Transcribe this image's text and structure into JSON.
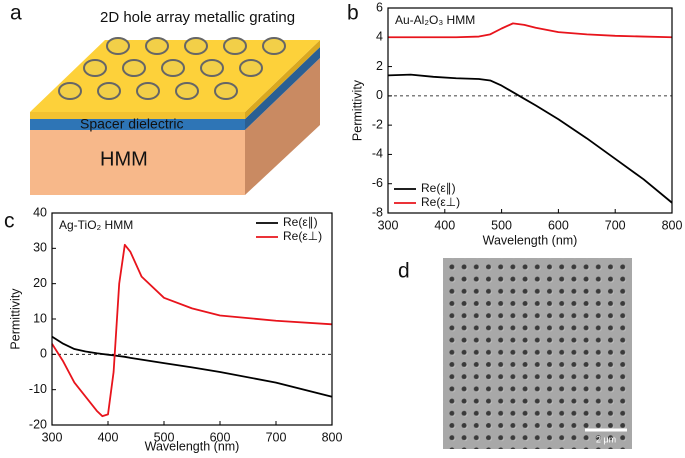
{
  "panel_labels": [
    "a",
    "b",
    "c",
    "d"
  ],
  "diagram": {
    "title": "2D hole array metallic grating",
    "spacer": "Spacer dielectric",
    "hmm": "HMM"
  },
  "sem": {
    "scale_bar": "2 μm"
  },
  "chart_data": [
    {
      "type": "line",
      "title": "Au-Al₂O₃ HMM",
      "x_label": "Wavelength (nm)",
      "y_label": "Permittivity",
      "x": [
        300,
        340,
        380,
        420,
        460,
        480,
        500,
        520,
        540,
        560,
        600,
        650,
        700,
        750,
        800
      ],
      "series": [
        {
          "name": "Re(ε∥)",
          "color": "#000000",
          "values": [
            1.4,
            1.45,
            1.3,
            1.2,
            1.15,
            1.05,
            0.7,
            0.25,
            -0.2,
            -0.65,
            -1.6,
            -2.9,
            -4.3,
            -5.7,
            -7.3
          ]
        },
        {
          "name": "Re(ε⊥)",
          "color": "#e8141c",
          "values": [
            4.0,
            4.0,
            4.0,
            4.0,
            4.05,
            4.2,
            4.6,
            4.95,
            4.85,
            4.65,
            4.35,
            4.2,
            4.1,
            4.05,
            4.0
          ]
        }
      ],
      "xlim": [
        300,
        800
      ],
      "xticks": [
        300,
        400,
        500,
        600,
        700,
        800
      ],
      "ylim": [
        -8,
        6
      ],
      "yticks": [
        -8,
        -6,
        -4,
        -2,
        0,
        2,
        4,
        6
      ],
      "hline": 0,
      "legend": "lower left"
    },
    {
      "type": "line",
      "title": "Ag-TiO₂ HMM",
      "x_label": "Wavelength (nm)",
      "y_label": "Permittivity",
      "x": [
        300,
        320,
        340,
        360,
        380,
        390,
        400,
        410,
        420,
        430,
        440,
        460,
        500,
        550,
        600,
        700,
        800
      ],
      "series": [
        {
          "name": "Re(ε∥)",
          "color": "#000000",
          "values": [
            5,
            3,
            1.5,
            0.8,
            0.3,
            0.1,
            -0.1,
            -0.3,
            -0.5,
            -0.7,
            -1,
            -1.5,
            -2.5,
            -3.7,
            -5,
            -8,
            -12
          ]
        },
        {
          "name": "Re(ε⊥)",
          "color": "#e8141c",
          "values": [
            3,
            -2,
            -8,
            -12,
            -16,
            -17.5,
            -17,
            -5,
            20,
            31,
            29,
            22,
            16,
            13,
            11,
            9.5,
            8.5
          ]
        }
      ],
      "xlim": [
        300,
        800
      ],
      "xticks": [
        300,
        400,
        500,
        600,
        700,
        800
      ],
      "ylim": [
        -20,
        40
      ],
      "yticks": [
        -20,
        -10,
        0,
        10,
        20,
        30,
        40
      ],
      "hline": 0,
      "legend": "upper right"
    }
  ]
}
